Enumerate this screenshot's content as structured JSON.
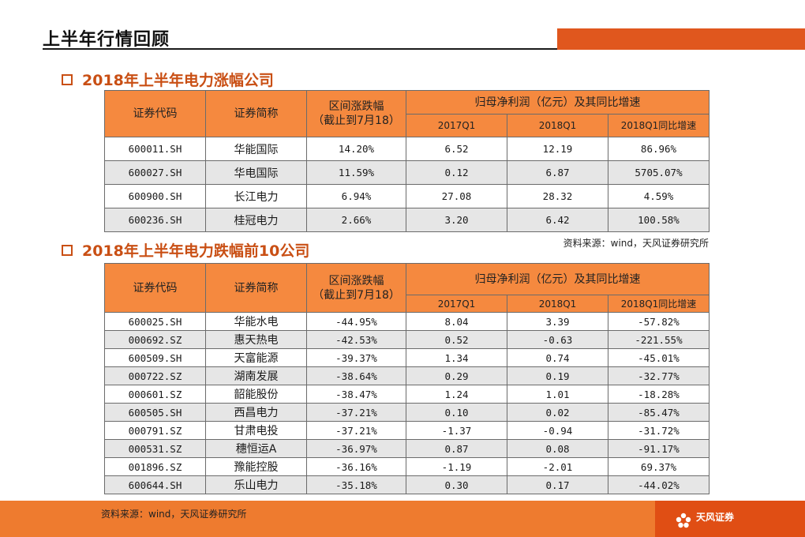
{
  "page": {
    "title": "上半年行情回顾"
  },
  "section1": {
    "heading": "2018年上半年电力涨幅公司",
    "headers": {
      "code": "证券代码",
      "name": "证券简称",
      "change_line1": "区间涨跌幅",
      "change_line2": "（截止到7月18）",
      "profit": "归母净利润（亿元）及其同比增速",
      "q2017": "2017Q1",
      "q2018": "2018Q1",
      "yoy": "2018Q1同比增速"
    },
    "rows": [
      [
        "600011.SH",
        "华能国际",
        "14.20%",
        "6.52",
        "12.19",
        "86.96%"
      ],
      [
        "600027.SH",
        "华电国际",
        "11.59%",
        "0.12",
        "6.87",
        "5705.07%"
      ],
      [
        "600900.SH",
        "长江电力",
        "6.94%",
        "27.08",
        "28.32",
        "4.59%"
      ],
      [
        "600236.SH",
        "桂冠电力",
        "2.66%",
        "3.20",
        "6.42",
        "100.58%"
      ]
    ],
    "source": "资料来源：wind，天风证券研究所"
  },
  "section2": {
    "heading": "2018年上半年电力跌幅前10公司",
    "headers": {
      "code": "证券代码",
      "name": "证券简称",
      "change_line1": "区间涨跌幅",
      "change_line2": "（截止到7月18）",
      "profit": "归母净利润（亿元）及其同比增速",
      "q2017": "2017Q1",
      "q2018": "2018Q1",
      "yoy": "2018Q1同比增速"
    },
    "rows": [
      [
        "600025.SH",
        "华能水电",
        "-44.95%",
        "8.04",
        "3.39",
        "-57.82%"
      ],
      [
        "000692.SZ",
        "惠天热电",
        "-42.53%",
        "0.52",
        "-0.63",
        "-221.55%"
      ],
      [
        "600509.SH",
        "天富能源",
        "-39.37%",
        "1.34",
        "0.74",
        "-45.01%"
      ],
      [
        "000722.SZ",
        "湖南发展",
        "-38.64%",
        "0.29",
        "0.19",
        "-32.77%"
      ],
      [
        "000601.SZ",
        "韶能股份",
        "-38.47%",
        "1.24",
        "1.01",
        "-18.28%"
      ],
      [
        "600505.SH",
        "西昌电力",
        "-37.21%",
        "0.10",
        "0.02",
        "-85.47%"
      ],
      [
        "000791.SZ",
        "甘肃电投",
        "-37.21%",
        "-1.37",
        "-0.94",
        "-31.72%"
      ],
      [
        "000531.SZ",
        "穗恒运A",
        "-36.97%",
        "0.87",
        "0.08",
        "-91.17%"
      ],
      [
        "001896.SZ",
        "豫能控股",
        "-36.16%",
        "-1.19",
        "-2.01",
        "69.37%"
      ],
      [
        "600644.SH",
        "乐山电力",
        "-35.18%",
        "0.30",
        "0.17",
        "-44.02%"
      ]
    ]
  },
  "footer": {
    "source": "资料来源：wind，天风证券研究所",
    "logo_text": "天风证券",
    "logo_icon": "flower-logo-icon"
  },
  "colors": {
    "accent": "#e0571e",
    "header_fill": "#f5893f",
    "heading_text": "#c94f14",
    "footer_band": "#ee7b2f",
    "alt_row": "#e6e6e6"
  }
}
